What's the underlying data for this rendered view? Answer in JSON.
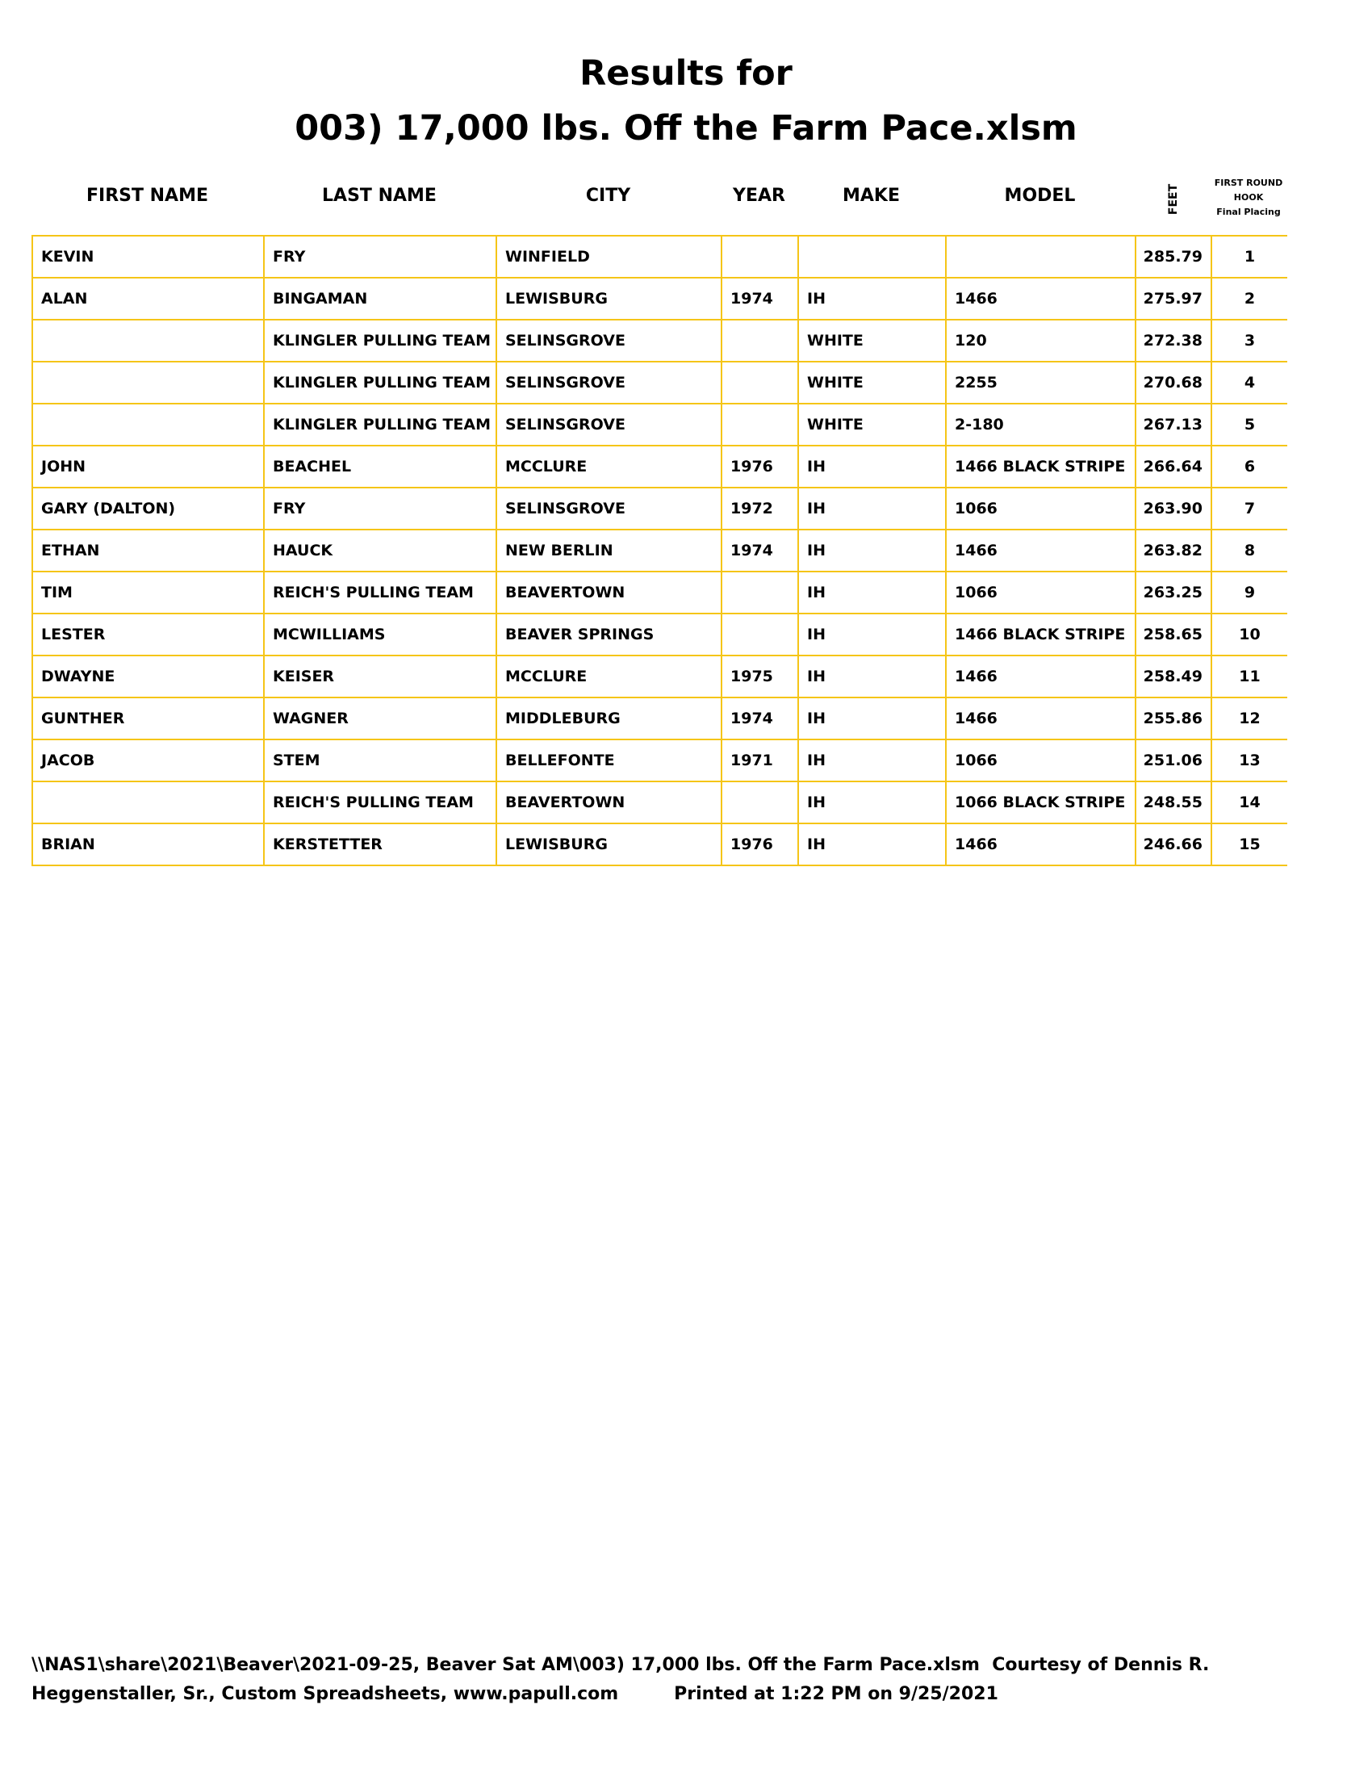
{
  "title": {
    "line1": "Results for",
    "line2": "003) 17,000 lbs. Off the Farm Pace.xlsm"
  },
  "headers": {
    "first_name": "FIRST NAME",
    "last_name": "LAST NAME",
    "city": "CITY",
    "year": "YEAR",
    "make": "MAKE",
    "model": "MODEL",
    "feet": "FEET",
    "placing_line1": "FIRST ROUND",
    "placing_line2": "HOOK",
    "placing_line3": "Final Placing"
  },
  "rows": [
    [
      "KEVIN",
      "FRY",
      "WINFIELD",
      "",
      "",
      "",
      "285.79",
      "1"
    ],
    [
      "ALAN",
      "BINGAMAN",
      "LEWISBURG",
      "1974",
      "IH",
      "1466",
      "275.97",
      "2"
    ],
    [
      "",
      "KLINGLER PULLING TEAM",
      "SELINSGROVE",
      "",
      "WHITE",
      "120",
      "272.38",
      "3"
    ],
    [
      "",
      "KLINGLER PULLING TEAM",
      "SELINSGROVE",
      "",
      "WHITE",
      "2255",
      "270.68",
      "4"
    ],
    [
      "",
      "KLINGLER PULLING TEAM",
      "SELINSGROVE",
      "",
      "WHITE",
      "2-180",
      "267.13",
      "5"
    ],
    [
      "JOHN",
      "BEACHEL",
      "MCCLURE",
      "1976",
      "IH",
      "1466 BLACK STRIPE",
      "266.64",
      "6"
    ],
    [
      "GARY (DALTON)",
      "FRY",
      "SELINSGROVE",
      "1972",
      "IH",
      "1066",
      "263.90",
      "7"
    ],
    [
      "ETHAN",
      "HAUCK",
      "NEW BERLIN",
      "1974",
      "IH",
      "1466",
      "263.82",
      "8"
    ],
    [
      "TIM",
      "REICH'S PULLING TEAM",
      "BEAVERTOWN",
      "",
      "IH",
      "1066",
      "263.25",
      "9"
    ],
    [
      "LESTER",
      "MCWILLIAMS",
      "BEAVER SPRINGS",
      "",
      "IH",
      "1466 BLACK STRIPE",
      "258.65",
      "10"
    ],
    [
      "DWAYNE",
      "KEISER",
      "MCCLURE",
      "1975",
      "IH",
      "1466",
      "258.49",
      "11"
    ],
    [
      "GUNTHER",
      "WAGNER",
      "MIDDLEBURG",
      "1974",
      "IH",
      "1466",
      "255.86",
      "12"
    ],
    [
      "JACOB",
      "STEM",
      "BELLEFONTE",
      "1971",
      "IH",
      "1066",
      "251.06",
      "13"
    ],
    [
      "",
      "REICH'S PULLING TEAM",
      "BEAVERTOWN",
      "",
      "IH",
      "1066 BLACK STRIPE",
      "248.55",
      "14"
    ],
    [
      "BRIAN",
      "KERSTETTER",
      "LEWISBURG",
      "1976",
      "IH",
      "1466",
      "246.66",
      "15"
    ]
  ],
  "footer": {
    "line1": "\\\\NAS1\\share\\2021\\Beaver\\2021-09-25, Beaver Sat AM\\003) 17,000 lbs. Off the Farm Pace.xlsm  Courtesy of Dennis R.",
    "line2": "Heggenstaller, Sr., Custom Spreadsheets, www.papull.com         Printed at 1:22 PM on 9/25/2021"
  },
  "colors": {
    "grid": "#f5c518"
  }
}
